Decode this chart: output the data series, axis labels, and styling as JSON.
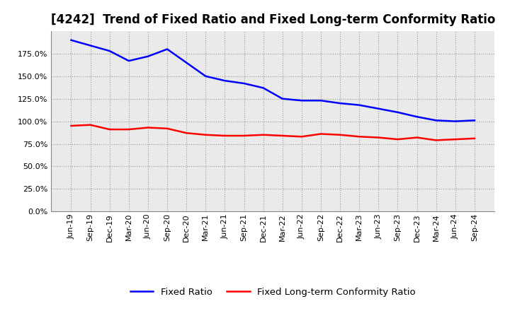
{
  "title": "[4242]  Trend of Fixed Ratio and Fixed Long-term Conformity Ratio",
  "x_labels": [
    "Jun-19",
    "Sep-19",
    "Dec-19",
    "Mar-20",
    "Jun-20",
    "Sep-20",
    "Dec-20",
    "Mar-21",
    "Jun-21",
    "Sep-21",
    "Dec-21",
    "Mar-22",
    "Jun-22",
    "Sep-22",
    "Dec-22",
    "Mar-23",
    "Jun-23",
    "Sep-23",
    "Dec-23",
    "Mar-24",
    "Jun-24",
    "Sep-24"
  ],
  "fixed_ratio": [
    190,
    184,
    178,
    167,
    172,
    180,
    165,
    150,
    145,
    142,
    137,
    125,
    123,
    123,
    120,
    118,
    114,
    110,
    105,
    101,
    100,
    101
  ],
  "fixed_lt_ratio": [
    95,
    96,
    91,
    91,
    93,
    92,
    87,
    85,
    84,
    84,
    85,
    84,
    83,
    86,
    85,
    83,
    82,
    80,
    82,
    79,
    80,
    81
  ],
  "ylim": [
    0,
    200
  ],
  "yticks": [
    0,
    25,
    50,
    75,
    100,
    125,
    150,
    175
  ],
  "blue_color": "#0000FF",
  "red_color": "#FF0000",
  "grid_color": "#999999",
  "bg_color": "#FFFFFF",
  "plot_bg_color": "#EAEAEA",
  "legend_labels": [
    "Fixed Ratio",
    "Fixed Long-term Conformity Ratio"
  ],
  "title_fontsize": 12,
  "tick_fontsize": 8,
  "legend_fontsize": 9.5
}
